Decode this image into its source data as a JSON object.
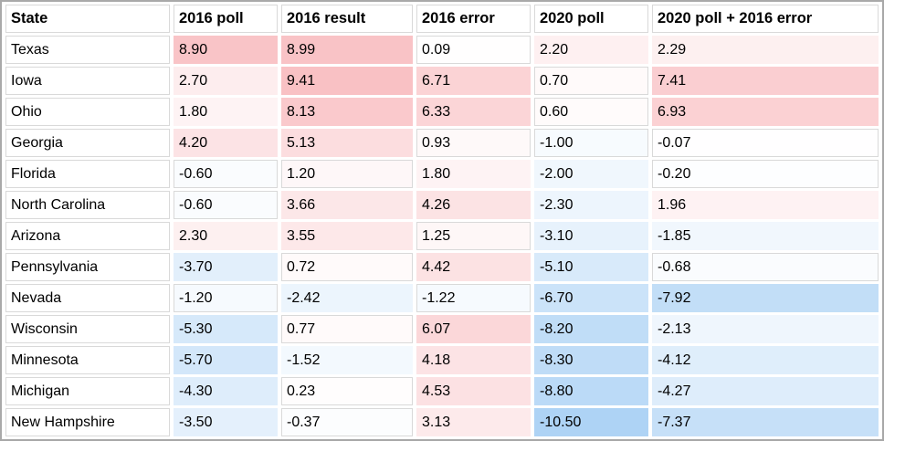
{
  "table": {
    "columns": [
      "State",
      "2016 poll",
      "2016 result",
      "2016 error",
      "2020 poll",
      "2020 poll + 2016 error"
    ],
    "rows": [
      {
        "state": "Texas",
        "cells": [
          {
            "t": "8.90",
            "bg": "#f9c4c7"
          },
          {
            "t": "8.99",
            "bg": "#f9c3c6"
          },
          {
            "t": "0.09",
            "bg": "#fffefe",
            "plain": true
          },
          {
            "t": "2.20",
            "bg": "#fef0f1"
          },
          {
            "t": "2.29",
            "bg": "#fdf0f0"
          }
        ]
      },
      {
        "state": "Iowa",
        "cells": [
          {
            "t": "2.70",
            "bg": "#fdedee"
          },
          {
            "t": "9.41",
            "bg": "#f9c1c4"
          },
          {
            "t": "6.71",
            "bg": "#fbd3d5"
          },
          {
            "t": "0.70",
            "bg": "#fffafa",
            "plain": true
          },
          {
            "t": "7.41",
            "bg": "#faced1"
          }
        ]
      },
      {
        "state": "Ohio",
        "cells": [
          {
            "t": "1.80",
            "bg": "#fef3f4"
          },
          {
            "t": "8.13",
            "bg": "#fac9cc"
          },
          {
            "t": "6.33",
            "bg": "#fbd5d7"
          },
          {
            "t": "0.60",
            "bg": "#fffbfb",
            "plain": true
          },
          {
            "t": "6.93",
            "bg": "#fbd1d3"
          }
        ]
      },
      {
        "state": "Georgia",
        "cells": [
          {
            "t": "4.20",
            "bg": "#fce3e5"
          },
          {
            "t": "5.13",
            "bg": "#fcdddf"
          },
          {
            "t": "0.93",
            "bg": "#fef9f9",
            "plain": true
          },
          {
            "t": "-1.00",
            "bg": "#f7fbfe",
            "plain": true
          },
          {
            "t": "-0.07",
            "bg": "#fffeff",
            "plain": true
          }
        ]
      },
      {
        "state": "Florida",
        "cells": [
          {
            "t": "-0.60",
            "bg": "#fafcfe",
            "plain": true
          },
          {
            "t": "1.20",
            "bg": "#fef7f8",
            "plain": true
          },
          {
            "t": "1.80",
            "bg": "#fef3f4"
          },
          {
            "t": "-2.00",
            "bg": "#f0f7fd"
          },
          {
            "t": "-0.20",
            "bg": "#fdfeff",
            "plain": true
          }
        ]
      },
      {
        "state": "North Carolina",
        "cells": [
          {
            "t": "-0.60",
            "bg": "#fafcfe",
            "plain": true
          },
          {
            "t": "3.66",
            "bg": "#fce7e8"
          },
          {
            "t": "4.26",
            "bg": "#fce3e4"
          },
          {
            "t": "-2.30",
            "bg": "#edf5fd"
          },
          {
            "t": "1.96",
            "bg": "#fef2f3"
          }
        ]
      },
      {
        "state": "Arizona",
        "cells": [
          {
            "t": "2.30",
            "bg": "#fdf0f0"
          },
          {
            "t": "3.55",
            "bg": "#fde8e9"
          },
          {
            "t": "1.25",
            "bg": "#fef7f7",
            "plain": true
          },
          {
            "t": "-3.10",
            "bg": "#e7f2fc"
          },
          {
            "t": "-1.85",
            "bg": "#f1f7fd"
          }
        ]
      },
      {
        "state": "Pennsylvania",
        "cells": [
          {
            "t": "-3.70",
            "bg": "#e2effb"
          },
          {
            "t": "0.72",
            "bg": "#fffafa",
            "plain": true
          },
          {
            "t": "4.42",
            "bg": "#fce2e3"
          },
          {
            "t": "-5.10",
            "bg": "#d8eafa"
          },
          {
            "t": "-0.68",
            "bg": "#fafcfe",
            "plain": true
          }
        ]
      },
      {
        "state": "Nevada",
        "cells": [
          {
            "t": "-1.20",
            "bg": "#f6fafe",
            "plain": true
          },
          {
            "t": "-2.42",
            "bg": "#ecf5fd"
          },
          {
            "t": "-1.22",
            "bg": "#f6fafe",
            "plain": true
          },
          {
            "t": "-6.70",
            "bg": "#cbe3f9"
          },
          {
            "t": "-7.92",
            "bg": "#c2def7"
          }
        ]
      },
      {
        "state": "Wisconsin",
        "cells": [
          {
            "t": "-5.30",
            "bg": "#d6e9fa"
          },
          {
            "t": "0.77",
            "bg": "#fffafa",
            "plain": true
          },
          {
            "t": "6.07",
            "bg": "#fbd7d9"
          },
          {
            "t": "-8.20",
            "bg": "#c0ddf7"
          },
          {
            "t": "-2.13",
            "bg": "#eff6fd"
          }
        ]
      },
      {
        "state": "Minnesota",
        "cells": [
          {
            "t": "-5.70",
            "bg": "#d3e7fa"
          },
          {
            "t": "-1.52",
            "bg": "#f3f9fe"
          },
          {
            "t": "4.18",
            "bg": "#fce3e5"
          },
          {
            "t": "-8.30",
            "bg": "#bfdcf7"
          },
          {
            "t": "-4.12",
            "bg": "#dfeefb"
          }
        ]
      },
      {
        "state": "Michigan",
        "cells": [
          {
            "t": "-4.30",
            "bg": "#deedfb"
          },
          {
            "t": "0.23",
            "bg": "#fffdfd",
            "plain": true
          },
          {
            "t": "4.53",
            "bg": "#fce1e3"
          },
          {
            "t": "-8.80",
            "bg": "#bbdaf7"
          },
          {
            "t": "-4.27",
            "bg": "#deedfb"
          }
        ]
      },
      {
        "state": "New Hampshire",
        "cells": [
          {
            "t": "-3.50",
            "bg": "#e4f0fc"
          },
          {
            "t": "-0.37",
            "bg": "#fcfdfe",
            "plain": true
          },
          {
            "t": "3.13",
            "bg": "#fdeaeb"
          },
          {
            "t": "-10.50",
            "bg": "#aed3f5"
          },
          {
            "t": "-7.37",
            "bg": "#c6e0f8"
          }
        ]
      }
    ]
  },
  "chart_data": {
    "type": "table",
    "columns": [
      "State",
      "2016 poll",
      "2016 result",
      "2016 error",
      "2020 poll",
      "2020 poll + 2016 error"
    ],
    "rows": [
      [
        "Texas",
        8.9,
        8.99,
        0.09,
        2.2,
        2.29
      ],
      [
        "Iowa",
        2.7,
        9.41,
        6.71,
        0.7,
        7.41
      ],
      [
        "Ohio",
        1.8,
        8.13,
        6.33,
        0.6,
        6.93
      ],
      [
        "Georgia",
        4.2,
        5.13,
        0.93,
        -1.0,
        -0.07
      ],
      [
        "Florida",
        -0.6,
        1.2,
        1.8,
        -2.0,
        -0.2
      ],
      [
        "North Carolina",
        -0.6,
        3.66,
        4.26,
        -2.3,
        1.96
      ],
      [
        "Arizona",
        2.3,
        3.55,
        1.25,
        -3.1,
        -1.85
      ],
      [
        "Pennsylvania",
        -3.7,
        0.72,
        4.42,
        -5.1,
        -0.68
      ],
      [
        "Nevada",
        -1.2,
        -2.42,
        -1.22,
        -6.7,
        -7.92
      ],
      [
        "Wisconsin",
        -5.3,
        0.77,
        6.07,
        -8.2,
        -2.13
      ],
      [
        "Minnesota",
        -5.7,
        -1.52,
        4.18,
        -8.3,
        -4.12
      ],
      [
        "Michigan",
        -4.3,
        0.23,
        4.53,
        -8.8,
        -4.27
      ],
      [
        "New Hampshire",
        -3.5,
        -0.37,
        3.13,
        -10.5,
        -7.37
      ]
    ],
    "color_scale": {
      "type": "diverging",
      "negative_color": "#aed3f5",
      "zero_color": "#ffffff",
      "positive_color": "#f9c1c4",
      "domain": [
        -10.5,
        0,
        9.41
      ]
    },
    "colors": {
      "gridline": "#d9d9d9",
      "outer_border": "#a9a9a9",
      "text": "#000000"
    }
  }
}
